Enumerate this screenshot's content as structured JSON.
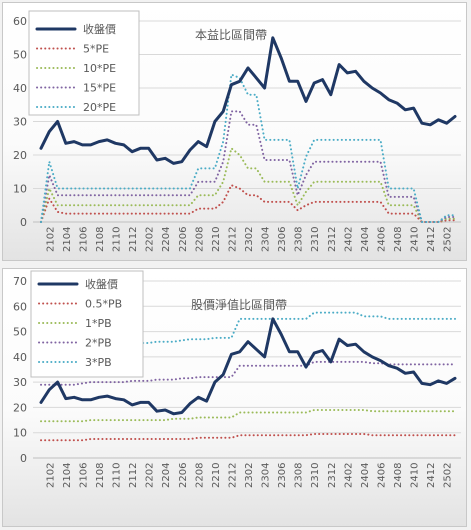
{
  "chart_data": [
    {
      "type": "line",
      "title": "本益比區間帶",
      "xlabel": "",
      "ylabel": "",
      "ylim": [
        0,
        60
      ],
      "yticks": [
        0,
        10,
        20,
        30,
        40,
        50,
        60
      ],
      "grid": true,
      "legend_position": "top-left",
      "x": [
        "2101",
        "2102",
        "2103",
        "2104",
        "2105",
        "2106",
        "2107",
        "2108",
        "2109",
        "2110",
        "2111",
        "2112",
        "2201",
        "2202",
        "2203",
        "2204",
        "2205",
        "2206",
        "2207",
        "2208",
        "2209",
        "2210",
        "2211",
        "2212",
        "2301",
        "2302",
        "2303",
        "2304",
        "2305",
        "2306",
        "2307",
        "2308",
        "2309",
        "2310",
        "2311",
        "2312",
        "2401",
        "2402",
        "2403",
        "2404",
        "2405",
        "2406",
        "2407",
        "2408",
        "2409",
        "2410",
        "2411",
        "2412",
        "2501",
        "2502",
        "2503"
      ],
      "xtick_labels": [
        "2102",
        "2104",
        "2106",
        "2108",
        "2110",
        "2112",
        "2202",
        "2204",
        "2206",
        "2208",
        "2210",
        "2212",
        "2302",
        "2304",
        "2306",
        "2308",
        "2310",
        "2312",
        "2402",
        "2404",
        "2406",
        "2408",
        "2410",
        "2412",
        "2502"
      ],
      "series": [
        {
          "name": "收盤價",
          "color": "#1f3864",
          "style": "solid",
          "width": 3,
          "values": [
            22,
            27,
            30,
            23.5,
            24,
            23,
            23,
            24,
            24.5,
            23.5,
            23,
            21,
            22,
            22,
            18.5,
            19,
            17.5,
            18,
            21.5,
            24,
            22.5,
            30,
            33,
            41,
            42,
            46,
            43,
            40,
            55,
            49,
            42,
            42,
            36,
            41.5,
            42.5,
            38,
            47,
            44.5,
            45,
            42,
            40,
            38.5,
            36.5,
            35.5,
            33.5,
            34,
            29.5,
            29,
            30.5,
            29.5,
            31.5
          ]
        },
        {
          "name": "5*PE",
          "color": "#c0504d",
          "style": "dotted",
          "width": 2,
          "values": [
            0,
            7,
            3,
            2.5,
            2.5,
            2.5,
            2.5,
            2.5,
            2.5,
            2.5,
            2.5,
            2.5,
            2.5,
            2.5,
            2.5,
            2.5,
            2.5,
            2.5,
            2.5,
            4,
            4,
            4,
            6,
            11,
            10,
            8,
            8,
            6,
            6,
            6,
            6,
            3.5,
            5,
            6,
            6,
            6,
            6,
            6,
            6,
            6,
            6,
            6,
            2.5,
            2.5,
            2.5,
            2.5,
            0,
            0,
            0,
            0.5,
            0.5
          ]
        },
        {
          "name": "10*PE",
          "color": "#9bbb59",
          "style": "dotted",
          "width": 2,
          "values": [
            0,
            10,
            5,
            5,
            5,
            5,
            5,
            5,
            5,
            5,
            5,
            5,
            5,
            5,
            5,
            5,
            5,
            5,
            5,
            8,
            8,
            8,
            12,
            22,
            20,
            16,
            16,
            12,
            12,
            12,
            12,
            5,
            9,
            12,
            12,
            12,
            12,
            12,
            12,
            12,
            12,
            12,
            5,
            5,
            5,
            5,
            0,
            0,
            0,
            1,
            1
          ]
        },
        {
          "name": "15*PE",
          "color": "#8064a2",
          "style": "dotted",
          "width": 2,
          "values": [
            0,
            14,
            8,
            8,
            8,
            8,
            8,
            8,
            8,
            8,
            8,
            8,
            8,
            8,
            8,
            8,
            8,
            8,
            8,
            12,
            12,
            12,
            18,
            33,
            33,
            29,
            29,
            18.5,
            18.5,
            18.5,
            18.5,
            8,
            14,
            18,
            18,
            18,
            18,
            18,
            18,
            18,
            18,
            18,
            7.5,
            7.5,
            7.5,
            7.5,
            0,
            0,
            0,
            1.5,
            1.5
          ]
        },
        {
          "name": "20*PE",
          "color": "#4bacc6",
          "style": "dotted",
          "width": 2,
          "values": [
            0,
            18,
            10,
            10,
            10,
            10,
            10,
            10,
            10,
            10,
            10,
            10,
            10,
            10,
            10,
            10,
            10,
            10,
            10,
            16,
            16,
            16,
            24,
            44,
            43,
            38,
            38,
            24.5,
            24.5,
            24.5,
            24.5,
            10,
            19.5,
            24.5,
            24.5,
            24.5,
            24.5,
            24.5,
            24.5,
            24.5,
            24.5,
            24.5,
            10,
            10,
            10,
            10,
            0,
            0,
            0,
            2,
            2
          ]
        }
      ]
    },
    {
      "type": "line",
      "title": "股價淨值比區間帶",
      "xlabel": "",
      "ylabel": "",
      "ylim": [
        0,
        70
      ],
      "yticks": [
        0,
        10,
        20,
        30,
        40,
        50,
        60,
        70
      ],
      "grid": true,
      "legend_position": "top-left",
      "x": [
        "2101",
        "2102",
        "2103",
        "2104",
        "2105",
        "2106",
        "2107",
        "2108",
        "2109",
        "2110",
        "2111",
        "2112",
        "2201",
        "2202",
        "2203",
        "2204",
        "2205",
        "2206",
        "2207",
        "2208",
        "2209",
        "2210",
        "2211",
        "2212",
        "2301",
        "2302",
        "2303",
        "2304",
        "2305",
        "2306",
        "2307",
        "2308",
        "2309",
        "2310",
        "2311",
        "2312",
        "2401",
        "2402",
        "2403",
        "2404",
        "2405",
        "2406",
        "2407",
        "2408",
        "2409",
        "2410",
        "2411",
        "2412",
        "2501",
        "2502",
        "2503"
      ],
      "xtick_labels": [
        "2102",
        "2104",
        "2106",
        "2108",
        "2110",
        "2112",
        "2202",
        "2204",
        "2206",
        "2208",
        "2210",
        "2212",
        "2302",
        "2304",
        "2306",
        "2308",
        "2310",
        "2312",
        "2402",
        "2404",
        "2406",
        "2408",
        "2410",
        "2412",
        "2502"
      ],
      "series": [
        {
          "name": "收盤價",
          "color": "#1f3864",
          "style": "solid",
          "width": 3,
          "values": [
            22,
            27,
            30,
            23.5,
            24,
            23,
            23,
            24,
            24.5,
            23.5,
            23,
            21,
            22,
            22,
            18.5,
            19,
            17.5,
            18,
            21.5,
            24,
            22.5,
            30,
            33,
            41,
            42,
            46,
            43,
            40,
            55,
            49,
            42,
            42,
            36,
            41.5,
            42.5,
            38,
            47,
            44.5,
            45,
            42,
            40,
            38.5,
            36.5,
            35.5,
            33.5,
            34,
            29.5,
            29,
            30.5,
            29.5,
            31.5
          ]
        },
        {
          "name": "0.5*PB",
          "color": "#c0504d",
          "style": "dotted",
          "width": 2,
          "values": [
            7,
            7,
            7,
            7,
            7,
            7,
            7.5,
            7.5,
            7.5,
            7.5,
            7.5,
            7.5,
            7.5,
            7.5,
            7.5,
            7.5,
            7.5,
            7.5,
            7.5,
            8,
            8,
            8,
            8,
            8,
            9,
            9,
            9,
            9,
            9,
            9,
            9,
            9,
            9,
            9.5,
            9.5,
            9.5,
            9.5,
            9.5,
            9.5,
            9.5,
            9,
            9,
            9,
            9,
            9,
            9,
            9,
            9,
            9,
            9,
            9
          ]
        },
        {
          "name": "1*PB",
          "color": "#9bbb59",
          "style": "dotted",
          "width": 2,
          "values": [
            14.5,
            14.5,
            14.5,
            14.5,
            14.5,
            14.5,
            15,
            15,
            15,
            15,
            15,
            15,
            15,
            15,
            15,
            15,
            15.5,
            15.5,
            15.5,
            16,
            16,
            16,
            16,
            16,
            18,
            18,
            18,
            18,
            18,
            18,
            18,
            18,
            18,
            19,
            19,
            19,
            19,
            19,
            19,
            19,
            18.5,
            18.5,
            18.5,
            18.5,
            18.5,
            18.5,
            18.5,
            18.5,
            18.5,
            18.5,
            18.5
          ]
        },
        {
          "name": "2*PB",
          "color": "#8064a2",
          "style": "dotted",
          "width": 2,
          "values": [
            29,
            29,
            29,
            29,
            29,
            29.5,
            30,
            30,
            30,
            30,
            30,
            30.5,
            30.5,
            30.5,
            31,
            31,
            31,
            31.5,
            31.5,
            32,
            32,
            32,
            32,
            32,
            36.5,
            36.5,
            36.5,
            36.5,
            36.5,
            36.5,
            36.5,
            36.5,
            36.5,
            38,
            38,
            38,
            38,
            38,
            38,
            38,
            37.5,
            37.5,
            37,
            37,
            37,
            37,
            37,
            37,
            37,
            37,
            37
          ]
        },
        {
          "name": "3*PB",
          "color": "#4bacc6",
          "style": "dotted",
          "width": 2,
          "values": [
            43.5,
            43.5,
            43.5,
            43.5,
            43.5,
            44,
            44.5,
            44.5,
            44.5,
            45,
            45,
            45.5,
            45.5,
            45.5,
            46,
            46,
            46,
            46.5,
            47,
            47,
            47,
            47.5,
            47.5,
            47.5,
            55,
            55,
            55,
            55,
            55,
            55,
            55,
            55,
            55,
            57.5,
            57.5,
            57.5,
            57.5,
            57.5,
            57.5,
            56,
            56,
            56,
            55,
            55,
            55,
            55,
            55,
            55,
            55,
            55,
            55
          ]
        }
      ]
    }
  ]
}
